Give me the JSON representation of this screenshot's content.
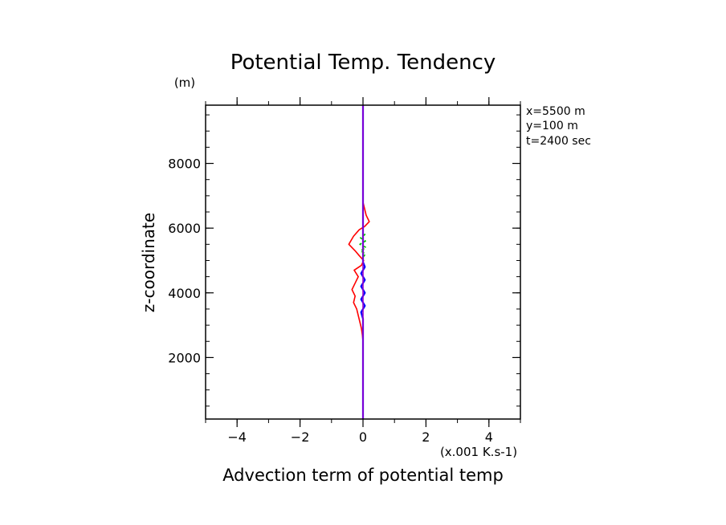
{
  "chart_data": {
    "type": "line",
    "title": "Potential Temp. Tendency",
    "xlabel": "Advection term of potential temp",
    "xunit": "(x.001 K.s-1)",
    "ylabel": "z-coordinate",
    "yunit": "(m)",
    "xlim": [
      -5,
      5
    ],
    "ylim": [
      100,
      9800
    ],
    "xticks": [
      -4,
      -2,
      0,
      2,
      4
    ],
    "yticks": [
      2000,
      4000,
      6000,
      8000
    ],
    "annotations": [
      "x=5500 m",
      "y=100 m",
      "t=2400 sec"
    ],
    "grid": false,
    "series": [
      {
        "color": "#ff0000",
        "points": [
          [
            0,
            100
          ],
          [
            0,
            2500
          ],
          [
            -0.02,
            2700
          ],
          [
            -0.05,
            2900
          ],
          [
            -0.1,
            3100
          ],
          [
            -0.15,
            3300
          ],
          [
            -0.2,
            3500
          ],
          [
            -0.3,
            3700
          ],
          [
            -0.25,
            3900
          ],
          [
            -0.35,
            4100
          ],
          [
            -0.25,
            4300
          ],
          [
            -0.15,
            4500
          ],
          [
            -0.28,
            4700
          ],
          [
            -0.05,
            4850
          ],
          [
            0.02,
            5000
          ],
          [
            -0.12,
            5150
          ],
          [
            -0.25,
            5300
          ],
          [
            -0.45,
            5500
          ],
          [
            -0.3,
            5750
          ],
          [
            -0.12,
            5950
          ],
          [
            0.05,
            6050
          ],
          [
            0.2,
            6200
          ],
          [
            0.1,
            6400
          ],
          [
            0.05,
            6600
          ],
          [
            0,
            6800
          ],
          [
            0,
            9800
          ]
        ]
      },
      {
        "color": "#0000ff",
        "points": [
          [
            0,
            100
          ],
          [
            0,
            3200
          ],
          [
            -0.06,
            3400
          ],
          [
            0.06,
            3600
          ],
          [
            -0.06,
            3800
          ],
          [
            0.06,
            4000
          ],
          [
            -0.06,
            4200
          ],
          [
            0.06,
            4400
          ],
          [
            -0.06,
            4600
          ],
          [
            0.06,
            4800
          ],
          [
            0,
            4950
          ],
          [
            0,
            9800
          ]
        ]
      },
      {
        "color": "#00c000",
        "dash": "4 3",
        "points": [
          [
            0,
            5100
          ],
          [
            0.08,
            5200
          ],
          [
            -0.08,
            5300
          ],
          [
            0.1,
            5400
          ],
          [
            -0.1,
            5500
          ],
          [
            0.08,
            5600
          ],
          [
            -0.08,
            5700
          ],
          [
            0.06,
            5800
          ],
          [
            0,
            5900
          ]
        ]
      },
      {
        "color": "#9900cc",
        "points": [
          [
            0,
            100
          ],
          [
            0,
            9800
          ]
        ]
      }
    ]
  }
}
